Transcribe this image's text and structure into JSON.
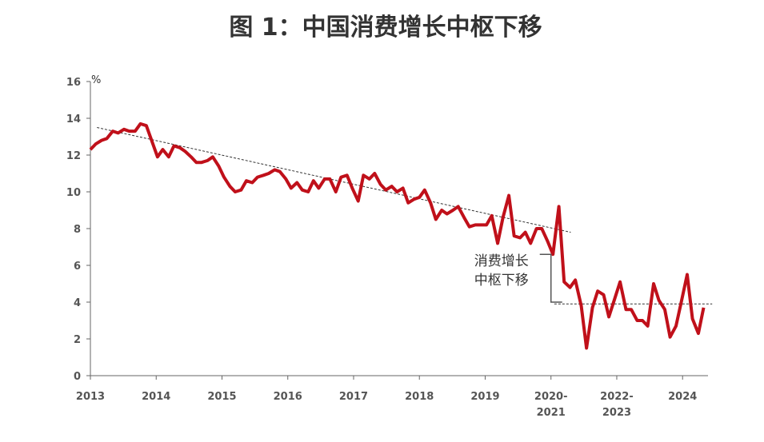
{
  "chart_data": {
    "type": "line",
    "title": "图 1：中国消费增长中枢下移",
    "y_unit": "%",
    "x": [
      0,
      0.08,
      0.17,
      0.25,
      0.34,
      0.42,
      0.51,
      0.59,
      0.68,
      0.76,
      0.85,
      0.93,
      1.02,
      1.1,
      1.19,
      1.27,
      1.36,
      1.44,
      1.53,
      1.61,
      1.69,
      1.78,
      1.86,
      1.95,
      2.03,
      2.12,
      2.2,
      2.29,
      2.37,
      2.46,
      2.54,
      2.63,
      2.71,
      2.8,
      2.88,
      2.97,
      3.05,
      3.14,
      3.22,
      3.31,
      3.39,
      3.47,
      3.56,
      3.64,
      3.73,
      3.81,
      3.9,
      3.98,
      4.07,
      4.15,
      4.24,
      4.32,
      4.41,
      4.49,
      4.58,
      4.66,
      4.75,
      4.83,
      4.92,
      5.0,
      5.08,
      5.17,
      5.25,
      5.34,
      5.42,
      5.51,
      5.59,
      5.68,
      5.76,
      5.85,
      5.93,
      6.02,
      6.1,
      6.19,
      6.27,
      6.36,
      6.44,
      6.53,
      6.61,
      6.69,
      6.78,
      6.86,
      6.95,
      7.03,
      7.12,
      7.2,
      7.29,
      7.37,
      7.46,
      7.54,
      7.63,
      7.71,
      7.8,
      7.88,
      7.97,
      8.05,
      8.14,
      8.22,
      8.31,
      8.39,
      8.47,
      8.56,
      8.64,
      8.73,
      8.81,
      8.9,
      8.98,
      9.07,
      9.15,
      9.24,
      9.32
    ],
    "series": [
      {
        "color": "#c0101a",
        "values": [
          12.3,
          12.6,
          12.8,
          12.9,
          13.3,
          13.2,
          13.4,
          13.3,
          13.3,
          13.7,
          13.6,
          12.8,
          11.9,
          12.3,
          11.9,
          12.5,
          12.4,
          12.2,
          11.9,
          11.6,
          11.6,
          11.7,
          11.9,
          11.4,
          10.8,
          10.3,
          10.0,
          10.1,
          10.6,
          10.5,
          10.8,
          10.9,
          11.0,
          11.2,
          11.1,
          10.7,
          10.2,
          10.5,
          10.1,
          10.0,
          10.6,
          10.2,
          10.7,
          10.7,
          10.0,
          10.8,
          10.9,
          10.2,
          9.5,
          10.9,
          10.7,
          11.0,
          10.4,
          10.1,
          10.3,
          10.0,
          10.2,
          9.4,
          9.6,
          9.7,
          10.1,
          9.4,
          8.5,
          9.0,
          8.8,
          9.0,
          9.2,
          8.6,
          8.1,
          8.2,
          8.2,
          8.2,
          8.7,
          7.2,
          8.6,
          9.8,
          7.6,
          7.5,
          7.8,
          7.2,
          8.0,
          8.0,
          7.3,
          6.6,
          9.2,
          5.1,
          4.8,
          5.2,
          3.8,
          1.5,
          3.7,
          4.6,
          4.4,
          3.2,
          4.2,
          5.1,
          3.6,
          3.6,
          3.0,
          3.0,
          2.7,
          5.0,
          4.1,
          3.6,
          2.1,
          2.7,
          4.0,
          5.5,
          3.1,
          2.3,
          3.7
        ]
      }
    ],
    "trend_lines": [
      {
        "x": [
          0.1,
          7.3
        ],
        "y": [
          13.5,
          7.8
        ]
      },
      {
        "x": [
          7.05,
          9.45
        ],
        "y": [
          3.9,
          3.9
        ]
      }
    ],
    "annotation": {
      "text": [
        "消费增长",
        "中枢下移"
      ],
      "x": 7.0,
      "y": [
        6.6,
        4.0
      ]
    },
    "xlim": [
      0,
      9.35
    ],
    "ylim": [
      0,
      16
    ],
    "xticks": [
      {
        "value": 0,
        "label": [
          "2013"
        ]
      },
      {
        "value": 1,
        "label": [
          "2014"
        ]
      },
      {
        "value": 2,
        "label": [
          "2015"
        ]
      },
      {
        "value": 3,
        "label": [
          "2016"
        ]
      },
      {
        "value": 4,
        "label": [
          "2017"
        ]
      },
      {
        "value": 5,
        "label": [
          "2018"
        ]
      },
      {
        "value": 6,
        "label": [
          "2019"
        ]
      },
      {
        "value": 7,
        "label": [
          "2020-",
          "2021"
        ]
      },
      {
        "value": 8,
        "label": [
          "2022-",
          "2023"
        ]
      },
      {
        "value": 9,
        "label": [
          "2024"
        ]
      }
    ],
    "yticks": [
      0,
      2,
      4,
      6,
      8,
      10,
      12,
      14,
      16
    ],
    "grid": false
  }
}
